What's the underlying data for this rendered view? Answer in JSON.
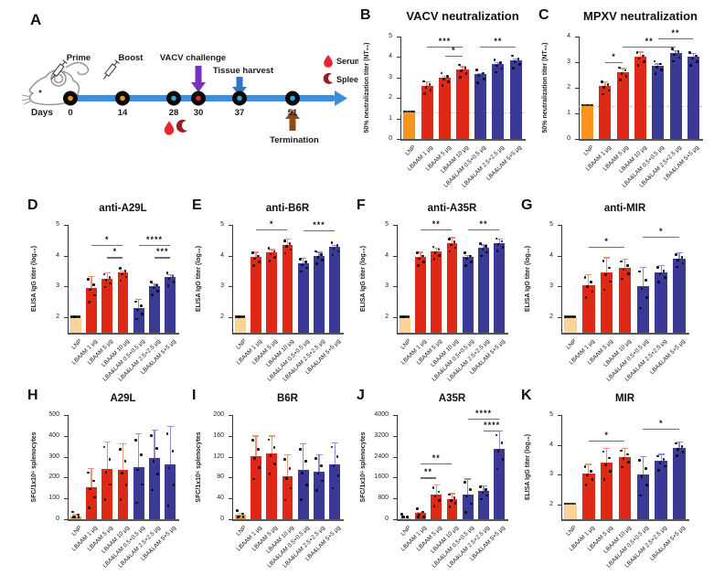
{
  "colors": {
    "bar_orange": "#F7941E",
    "bar_tan": "#FAD399",
    "bar_red": "#E02817",
    "bar_blue": "#3A3A96",
    "err_orange": "#F6BE6B",
    "err_red": "#F0907F",
    "err_blue": "#8F8ECE",
    "timeline_blue": "#3E8EDB",
    "arrow_purple": "#7B2FBE",
    "arrow_blue": "#2E75C6",
    "arrow_brown": "#8B4A16",
    "serum_red": "#E8262D",
    "spleen_darkred": "#9E1B1F"
  },
  "panel_a": {
    "label": "A",
    "days_label": "Days",
    "days": [
      "0",
      "14",
      "28",
      "30",
      "37",
      "51"
    ],
    "day_marker_colors": [
      "#F7941E",
      "#F7941E",
      "#29ABE2",
      "#E8262D",
      "#29ABE2",
      "#29ABE2"
    ],
    "prime_label": "Prime",
    "boost_label": "Boost",
    "vacv_challenge_label": "VACV challenge",
    "tissue_harvest_label": "Tissue harvest",
    "termination_label": "Termination",
    "legend": {
      "serum": "Serum",
      "spleen": "Spleen"
    }
  },
  "chart_data": [
    {
      "id": "B",
      "letter": "B",
      "type": "bar",
      "title": "VACV neutralization",
      "ylabel": "50% neutralization titer (NT₅₀)",
      "ylim": [
        0,
        5
      ],
      "yticks": [
        0,
        1,
        2,
        3,
        4,
        5
      ],
      "baseline": 1.3,
      "categories": [
        "LNP",
        "LBAAM 1 µg",
        "LBAAM 5 µg",
        "LBAAM 10 µg",
        "LBA&LAM 0.5+0.5 µg",
        "LBA&LAM 2.5+2.5 µg",
        "LBA&LAM 5+5 µg"
      ],
      "values": [
        1.3,
        2.6,
        3.0,
        3.4,
        3.15,
        3.65,
        3.85
      ],
      "errors": [
        0,
        0.22,
        0.1,
        0.15,
        0.08,
        0.1,
        0.1
      ],
      "bar_colors": [
        "orange",
        "red",
        "red",
        "red",
        "blue",
        "blue",
        "blue"
      ],
      "significance": [
        {
          "from": 1,
          "to": 3,
          "stars": "***",
          "y": 4.5
        },
        {
          "from": 2,
          "to": 3,
          "stars": "*",
          "y": 4.05
        },
        {
          "from": 4,
          "to": 6,
          "stars": "**",
          "y": 4.5
        }
      ]
    },
    {
      "id": "C",
      "letter": "C",
      "type": "bar",
      "title": "MPXV neutralization",
      "ylabel": "50% neutralization titer (NT₅₀)",
      "ylim": [
        0,
        4
      ],
      "yticks": [
        0,
        1,
        2,
        3,
        4
      ],
      "baseline": 1.3,
      "categories": [
        "LNP",
        "LBAAM 1 µg",
        "LBAAM 5 µg",
        "LBAAM 10 µg",
        "LBA&LAM 0.5+0.5 µg",
        "LBA&LAM 2.5+2.5 µg",
        "LBA&LAM 5+5 µg"
      ],
      "values": [
        1.3,
        2.07,
        2.62,
        3.2,
        2.87,
        3.35,
        3.2
      ],
      "errors": [
        0,
        0.18,
        0.15,
        0.22,
        0.08,
        0.12,
        0.15
      ],
      "bar_colors": [
        "orange",
        "red",
        "red",
        "red",
        "blue",
        "blue",
        "blue"
      ],
      "significance": [
        {
          "from": 1,
          "to": 2,
          "stars": "*",
          "y": 3.0
        },
        {
          "from": 2,
          "to": 5,
          "stars": "**",
          "y": 3.62
        },
        {
          "from": 4,
          "to": 6,
          "stars": "**",
          "y": 3.92
        }
      ]
    },
    {
      "id": "D",
      "letter": "D",
      "type": "bar",
      "title": "anti-A29L",
      "ylabel": "ELISA IgG titer (log₁₀)",
      "ylim": [
        1.5,
        5
      ],
      "yticks": [
        2,
        3,
        4,
        5
      ],
      "categories": [
        "LNP",
        "LBAAM 1 µg",
        "LBAAM 5 µg",
        "LBAAM 10 µg",
        "LBA&LAM 0.5+0.5 µg",
        "LBA&LAM 2.5+2.5 µg",
        "LBA&LAM 5+5 µg"
      ],
      "values": [
        2.0,
        2.95,
        3.25,
        3.45,
        2.3,
        3.0,
        3.3
      ],
      "errors": [
        0,
        0.4,
        0.22,
        0.07,
        0.3,
        0.1,
        0.1
      ],
      "bar_colors": [
        "tan",
        "red",
        "red",
        "red",
        "blue",
        "blue",
        "blue"
      ],
      "significance": [
        {
          "from": 1,
          "to": 3,
          "stars": "*",
          "y": 4.35
        },
        {
          "from": 2,
          "to": 3,
          "stars": "*",
          "y": 3.95
        },
        {
          "from": 4,
          "to": 6,
          "stars": "****",
          "y": 4.35
        },
        {
          "from": 5,
          "to": 6,
          "stars": "***",
          "y": 3.95
        }
      ]
    },
    {
      "id": "E",
      "letter": "E",
      "type": "bar",
      "title": "anti-B6R",
      "ylabel": "ELISA IgG titer (log₁₀)",
      "ylim": [
        1.5,
        5
      ],
      "yticks": [
        2,
        3,
        4,
        5
      ],
      "categories": [
        "LNP",
        "LBAAM 1 µg",
        "LBAAM 5 µg",
        "LBAAM 10 µg",
        "LBA&LAM 0.5+0.5 µg",
        "LBA&LAM 2.5+2.5 µg",
        "LBA&LAM 5+5 µg"
      ],
      "values": [
        2.0,
        3.95,
        4.1,
        4.35,
        3.75,
        4.0,
        4.28
      ],
      "errors": [
        0,
        0.18,
        0.12,
        0.2,
        0.18,
        0.13,
        0.08
      ],
      "bar_colors": [
        "tan",
        "red",
        "red",
        "red",
        "blue",
        "blue",
        "blue"
      ],
      "significance": [
        {
          "from": 1,
          "to": 3,
          "stars": "*",
          "y": 4.85
        },
        {
          "from": 4,
          "to": 6,
          "stars": "***",
          "y": 4.82
        }
      ]
    },
    {
      "id": "F",
      "letter": "F",
      "type": "bar",
      "title": "anti-A35R",
      "ylabel": "ELISA IgG titer (log₁₀)",
      "ylim": [
        1.5,
        5
      ],
      "yticks": [
        2,
        3,
        4,
        5
      ],
      "categories": [
        "LNP",
        "LBAAM 1 µg",
        "LBAAM 5 µg",
        "LBAAM 10 µg",
        "LBA&LAM 0.5+0.5 µg",
        "LBA&LAM 2.5+2.5 µg",
        "LBA&LAM 5+5 µg"
      ],
      "values": [
        2.0,
        3.95,
        4.15,
        4.4,
        3.95,
        4.25,
        4.42
      ],
      "errors": [
        0,
        0.18,
        0.12,
        0.2,
        0.07,
        0.12,
        0.14
      ],
      "bar_colors": [
        "tan",
        "red",
        "red",
        "red",
        "blue",
        "blue",
        "blue"
      ],
      "significance": [
        {
          "from": 1,
          "to": 3,
          "stars": "**",
          "y": 4.85
        },
        {
          "from": 4,
          "to": 6,
          "stars": "**",
          "y": 4.85
        }
      ]
    },
    {
      "id": "G",
      "letter": "G",
      "type": "bar",
      "title": "anti-MIR",
      "ylabel": "ELISA IgG titer (log₁₀)",
      "ylim": [
        1.5,
        5
      ],
      "yticks": [
        2,
        3,
        4,
        5
      ],
      "categories": [
        "LNP",
        "LBAAM 1 µg",
        "LBAAM 5 µg",
        "LBAAM 10 µg",
        "LBA&LAM 0.5+0.5 µg",
        "LBA&LAM 2.5+2.5 µg",
        "LBA&LAM 5+5 µg"
      ],
      "values": [
        2.0,
        3.05,
        3.45,
        3.6,
        3.0,
        3.45,
        3.9
      ],
      "errors": [
        0,
        0.35,
        0.5,
        0.3,
        0.63,
        0.25,
        0.22
      ],
      "bar_colors": [
        "tan",
        "red",
        "red",
        "red",
        "blue",
        "blue",
        "blue"
      ],
      "significance": [
        {
          "from": 1,
          "to": 3,
          "stars": "*",
          "y": 4.3
        },
        {
          "from": 4,
          "to": 6,
          "stars": "*",
          "y": 4.62
        }
      ]
    },
    {
      "id": "H",
      "letter": "H",
      "type": "bar",
      "title": "A29L",
      "ylabel": "SFC/1x10⁶ splenocytes",
      "ylim": [
        0,
        500
      ],
      "yticks": [
        0,
        100,
        200,
        300,
        400,
        500
      ],
      "categories": [
        "LNP",
        "LBAAM 1 µg",
        "LBAAM 5 µg",
        "LBAAM 10 µg",
        "LBA&LAM 0.5+0.5 µg",
        "LBA&LAM 2.5+2.5 µg",
        "LBA&LAM 5+5 µg"
      ],
      "values": [
        15,
        155,
        240,
        235,
        252,
        292,
        262
      ],
      "errors": [
        10,
        90,
        135,
        130,
        160,
        140,
        185
      ],
      "bar_colors": [
        "orange",
        "red",
        "red",
        "red",
        "blue",
        "blue",
        "blue"
      ],
      "significance": []
    },
    {
      "id": "I",
      "letter": "I",
      "type": "bar",
      "title": "B6R",
      "ylabel": "SFC/1x10⁶ splenocytes",
      "ylim": [
        0,
        200
      ],
      "yticks": [
        0,
        40,
        80,
        120,
        160,
        200
      ],
      "categories": [
        "LNP",
        "LBAAM 1 µg",
        "LBAAM 5 µg",
        "LBAAM 10 µg",
        "LBA&LAM 0.5+0.5 µg",
        "LBA&LAM 2.5+2.5 µg",
        "LBA&LAM 5+5 µg"
      ],
      "values": [
        8,
        121,
        126,
        83,
        94,
        92,
        106
      ],
      "errors": [
        5,
        40,
        35,
        42,
        52,
        33,
        42
      ],
      "bar_colors": [
        "orange",
        "red",
        "red",
        "red",
        "blue",
        "blue",
        "blue"
      ],
      "significance": []
    },
    {
      "id": "J",
      "letter": "J",
      "type": "bar",
      "title": "A35R",
      "ylabel": "SFC/1x10⁶ splenocytes",
      "ylim": [
        0,
        4000
      ],
      "yticks": [
        0,
        800,
        1600,
        2400,
        3200,
        4000
      ],
      "categories": [
        "LNP",
        "LBAAM 1 µg",
        "LBAAM 5 µg",
        "LBAAM 10 µg",
        "LBA&LAM 0.5+0.5 µg",
        "LBA&LAM 2.5+2.5 µg",
        "LBA&LAM 5+5 µg"
      ],
      "values": [
        30,
        230,
        950,
        780,
        950,
        1080,
        2700
      ],
      "errors": [
        15,
        60,
        380,
        230,
        620,
        230,
        700
      ],
      "bar_colors": [
        "orange",
        "red",
        "red",
        "red",
        "blue",
        "blue",
        "blue"
      ],
      "significance": [
        {
          "from": 1,
          "to": 2,
          "stars": "**",
          "y": 1600
        },
        {
          "from": 1,
          "to": 3,
          "stars": "**",
          "y": 2150
        },
        {
          "from": 4,
          "to": 6,
          "stars": "****",
          "y": 3850
        },
        {
          "from": 5,
          "to": 6,
          "stars": "****",
          "y": 3400
        }
      ]
    },
    {
      "id": "K",
      "letter": "K",
      "type": "bar",
      "title": "MIR",
      "ylabel": "ELISA IgG titer (log₁₀)",
      "ylim": [
        1.5,
        5
      ],
      "yticks": [
        2,
        3,
        4,
        5
      ],
      "categories": [
        "LNP",
        "LBAAM 1 µg",
        "LBAAM 5 µg",
        "LBAAM 10 µg",
        "LBA&LAM 0.5+0.5 µg",
        "LBA&LAM 2.5+2.5 µg",
        "LBA&LAM 5+5 µg"
      ],
      "values": [
        2.0,
        3.03,
        3.4,
        3.6,
        3.0,
        3.45,
        3.9
      ],
      "errors": [
        0,
        0.33,
        0.5,
        0.3,
        0.63,
        0.25,
        0.22
      ],
      "bar_colors": [
        "tan",
        "red",
        "red",
        "red",
        "blue",
        "blue",
        "blue"
      ],
      "significance": [
        {
          "from": 1,
          "to": 3,
          "stars": "*",
          "y": 4.15
        },
        {
          "from": 4,
          "to": 6,
          "stars": "*",
          "y": 4.55
        }
      ]
    }
  ]
}
